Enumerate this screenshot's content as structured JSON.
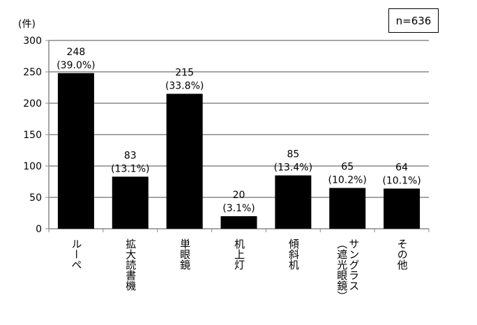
{
  "chart_data": {
    "type": "bar",
    "categories": [
      "ルーペ",
      "拡大読書機",
      "単眼鏡",
      "机上灯",
      "傾斜机",
      "サングラス\n（遮光眼鏡）",
      "その他"
    ],
    "values": [
      248,
      83,
      215,
      20,
      85,
      65,
      64
    ],
    "data_labels": [
      "248\n(39.0%)",
      "83\n(13.1%)",
      "215\n(33.8%)",
      "20\n(3.1%)",
      "85\n(13.4%)",
      "65\n(10.2%)",
      "64\n(10.1%)"
    ],
    "ylabel": "(件)",
    "ylim": [
      0,
      300
    ],
    "yticks": [
      0,
      50,
      100,
      150,
      200,
      250,
      300
    ],
    "grid": true,
    "annotation": "n=636",
    "bar_color": "#000000",
    "grid_color": "#a6a6a6"
  }
}
